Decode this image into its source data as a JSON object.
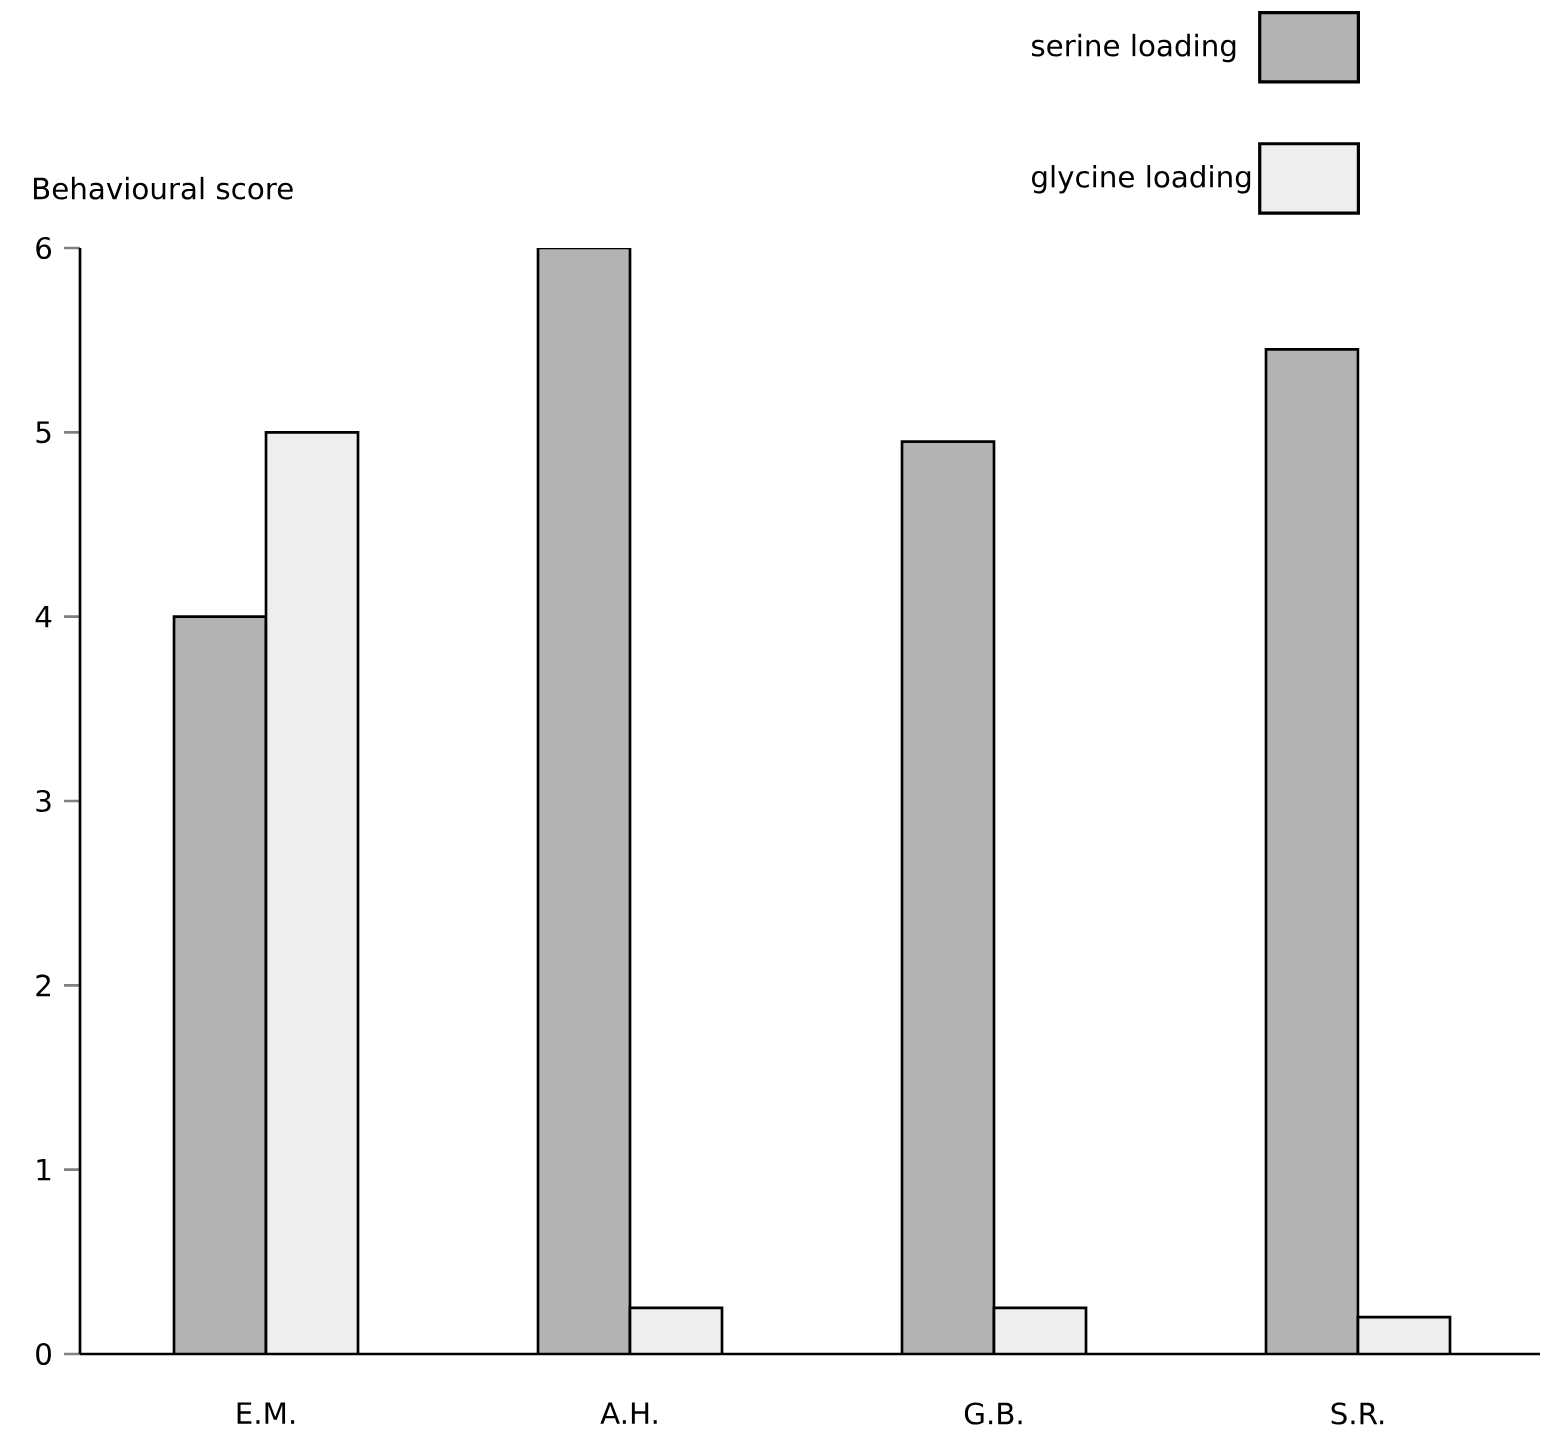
{
  "chart_data": {
    "type": "bar",
    "ylabel": "Behavioural score",
    "categories": [
      "E.M.",
      "A.H.",
      "G.B.",
      "S.R."
    ],
    "series": [
      {
        "name": "serine loading",
        "color": "#b3b3b3",
        "values": [
          4,
          6,
          4.95,
          5.45
        ]
      },
      {
        "name": "glycine loading",
        "color": "#eeeeee",
        "values": [
          5,
          0.25,
          0.25,
          0.2
        ]
      }
    ],
    "ylim": [
      0,
      6
    ],
    "yticks": [
      0,
      1,
      2,
      3,
      4,
      5,
      6
    ],
    "legend": "top right"
  }
}
